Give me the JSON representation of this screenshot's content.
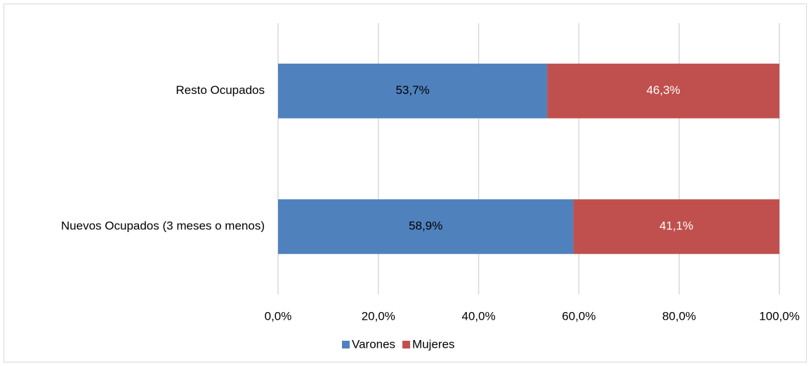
{
  "chart_data": {
    "type": "stacked_barh",
    "categories": [
      "Resto Ocupados",
      "Nuevos Ocupados (3 meses o menos)"
    ],
    "series": [
      {
        "name": "Varones",
        "color": "#4f81bd",
        "values": [
          53.7,
          58.9
        ],
        "value_labels": [
          "53,7%",
          "58,9%"
        ]
      },
      {
        "name": "Mujeres",
        "color": "#c0504d",
        "values": [
          46.3,
          41.1
        ],
        "value_labels": [
          "46,3%",
          "41,1%"
        ]
      }
    ],
    "xlim": [
      0,
      100
    ],
    "xticks": [
      {
        "value": 0,
        "label": "0,0%"
      },
      {
        "value": 20,
        "label": "20,0%"
      },
      {
        "value": 40,
        "label": "40,0%"
      },
      {
        "value": 60,
        "label": "60,0%"
      },
      {
        "value": 80,
        "label": "80,0%"
      },
      {
        "value": 100,
        "label": "100,0%"
      }
    ],
    "grid": true,
    "legend": "bottom"
  }
}
